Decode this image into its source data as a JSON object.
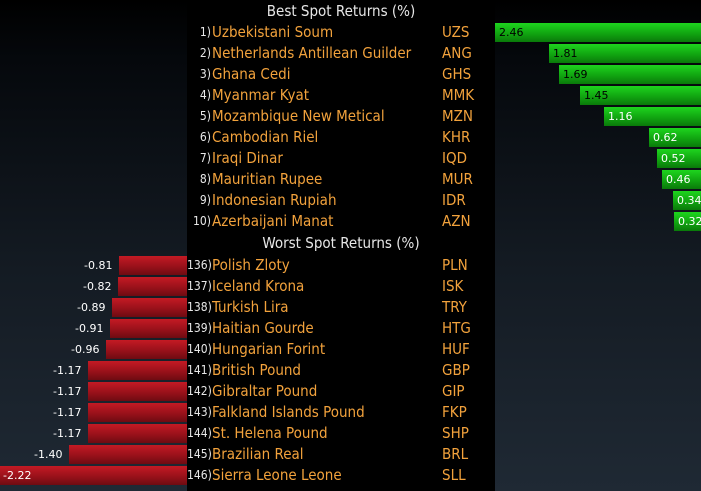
{
  "chart_data": [
    {
      "type": "bar",
      "title": "Best Spot Returns (%)",
      "orientation": "horizontal",
      "rows": [
        {
          "rank": "1)",
          "name": "Uzbekistani Soum",
          "code": "UZS",
          "value": 2.46,
          "label": "2.46"
        },
        {
          "rank": "2)",
          "name": "Netherlands Antillean Guilder",
          "code": "ANG",
          "value": 1.81,
          "label": "1.81"
        },
        {
          "rank": "3)",
          "name": "Ghana Cedi",
          "code": "GHS",
          "value": 1.69,
          "label": "1.69"
        },
        {
          "rank": "4)",
          "name": "Myanmar Kyat",
          "code": "MMK",
          "value": 1.45,
          "label": "1.45"
        },
        {
          "rank": "5)",
          "name": "Mozambique New Metical",
          "code": "MZN",
          "value": 1.16,
          "label": "1.16"
        },
        {
          "rank": "6)",
          "name": "Cambodian Riel",
          "code": "KHR",
          "value": 0.62,
          "label": "0.62"
        },
        {
          "rank": "7)",
          "name": "Iraqi Dinar",
          "code": "IQD",
          "value": 0.52,
          "label": "0.52"
        },
        {
          "rank": "8)",
          "name": "Mauritian Rupee",
          "code": "MUR",
          "value": 0.46,
          "label": "0.46"
        },
        {
          "rank": "9)",
          "name": "Indonesian Rupiah",
          "code": "IDR",
          "value": 0.34,
          "label": "0.34"
        },
        {
          "rank": "10)",
          "name": "Azerbaijani Manat",
          "code": "AZN",
          "value": 0.32,
          "label": "0.32"
        }
      ]
    },
    {
      "type": "bar",
      "title": "Worst Spot Returns (%)",
      "orientation": "horizontal",
      "rows": [
        {
          "rank": "136)",
          "name": "Polish Zloty",
          "code": "PLN",
          "value": -0.81,
          "label": "-0.81"
        },
        {
          "rank": "137)",
          "name": "Iceland Krona",
          "code": "ISK",
          "value": -0.82,
          "label": "-0.82"
        },
        {
          "rank": "138)",
          "name": "Turkish Lira",
          "code": "TRY",
          "value": -0.89,
          "label": "-0.89"
        },
        {
          "rank": "139)",
          "name": "Haitian Gourde",
          "code": "HTG",
          "value": -0.91,
          "label": "-0.91"
        },
        {
          "rank": "140)",
          "name": "Hungarian Forint",
          "code": "HUF",
          "value": -0.96,
          "label": "-0.96"
        },
        {
          "rank": "141)",
          "name": "British Pound",
          "code": "GBP",
          "value": -1.17,
          "label": "-1.17"
        },
        {
          "rank": "142)",
          "name": "Gibraltar Pound",
          "code": "GIP",
          "value": -1.17,
          "label": "-1.17"
        },
        {
          "rank": "143)",
          "name": "Falkland Islands Pound",
          "code": "FKP",
          "value": -1.17,
          "label": "-1.17"
        },
        {
          "rank": "144)",
          "name": "St. Helena Pound",
          "code": "SHP",
          "value": -1.17,
          "label": "-1.17"
        },
        {
          "rank": "145)",
          "name": "Brazilian Real",
          "code": "BRL",
          "value": -1.4,
          "label": "-1.40"
        },
        {
          "rank": "146)",
          "name": "Sierra Leone Leone",
          "code": "SLL",
          "value": -2.22,
          "label": "-2.22"
        }
      ]
    }
  ],
  "colors": {
    "positive_bar": "#16b716",
    "negative_bar": "#a3141d",
    "currency_text": "#f2a23c",
    "title_text": "#e6e6e6",
    "background": "#000000"
  }
}
